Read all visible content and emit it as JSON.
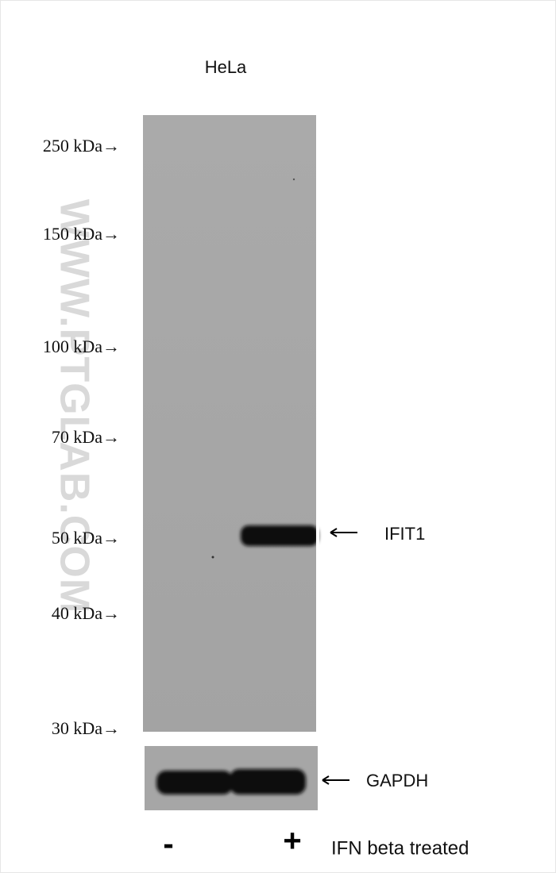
{
  "sample": "HeLa",
  "markers": [
    "250 kDa→",
    "150 kDa→",
    "100 kDa→",
    "70 kDa→",
    "50 kDa→",
    "40 kDa→",
    "30 kDa→"
  ],
  "bands": [
    {
      "label": "IFIT1"
    },
    {
      "label": "GAPDH"
    }
  ],
  "lanes": [
    "-",
    "+"
  ],
  "treatment": "IFN beta treated",
  "watermark": "WWW.PTGLAB.COM"
}
